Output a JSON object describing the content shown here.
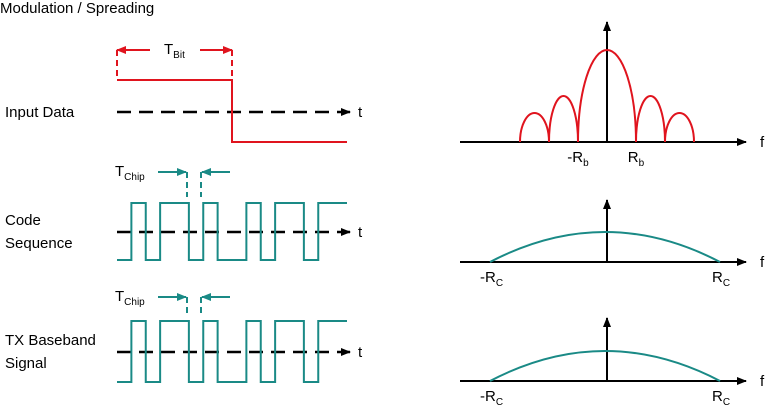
{
  "title": "Modulation / Spreading",
  "rows": [
    {
      "label": [
        "Input Data"
      ],
      "marker": {
        "main": "T",
        "sub": "Bit"
      },
      "axis": "t",
      "spectrum": {
        "left": {
          "main": "-R",
          "sub": "b"
        },
        "right": {
          "main": "R",
          "sub": "b"
        },
        "axis": "f"
      }
    },
    {
      "label": [
        "Code",
        "Sequence"
      ],
      "marker": {
        "main": "T",
        "sub": "Chip"
      },
      "axis": "t",
      "spectrum": {
        "left": {
          "main": "-R",
          "sub": "C"
        },
        "right": {
          "main": "R",
          "sub": "C"
        },
        "axis": "f"
      }
    },
    {
      "label": [
        "TX Baseband",
        "Signal"
      ],
      "marker": {
        "main": "T",
        "sub": "Chip"
      },
      "axis": "t",
      "spectrum": {
        "left": {
          "main": "-R",
          "sub": "C"
        },
        "right": {
          "main": "R",
          "sub": "C"
        },
        "axis": "f"
      }
    }
  ]
}
